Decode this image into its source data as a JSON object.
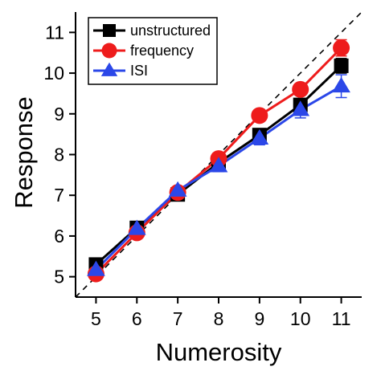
{
  "chart_data": {
    "type": "line",
    "xlabel": "Numerosity",
    "ylabel": "Response",
    "xlim": [
      4.5,
      11.5
    ],
    "ylim": [
      4.5,
      11.5
    ],
    "x_ticks": [
      5,
      6,
      7,
      8,
      9,
      10,
      11
    ],
    "y_ticks": [
      5,
      6,
      7,
      8,
      9,
      10,
      11
    ],
    "x_tick_labels": [
      "5",
      "6",
      "7",
      "8",
      "9",
      "10",
      "11"
    ],
    "y_tick_labels": [
      "5",
      "6",
      "7",
      "8",
      "9",
      "10",
      "11"
    ],
    "x": [
      5,
      6,
      7,
      8,
      9,
      10,
      11
    ],
    "reference_line": {
      "style": "dashed",
      "description_from": [
        4.5,
        4.5
      ],
      "description_to": [
        11.5,
        11.5
      ]
    },
    "legend_position": "top-left",
    "grid": false,
    "series": [
      {
        "name": "unstructured",
        "marker": "square",
        "color": "#000000",
        "values": [
          5.3,
          6.2,
          7.02,
          7.8,
          8.48,
          9.22,
          10.18
        ],
        "error": [
          0.04,
          0.04,
          0.04,
          0.08,
          0.1,
          0.14,
          0.18
        ]
      },
      {
        "name": "frequency",
        "marker": "circle",
        "color": "#ee1c1c",
        "values": [
          5.07,
          6.08,
          7.07,
          7.9,
          8.96,
          9.6,
          10.62
        ],
        "error": [
          0.04,
          0.04,
          0.04,
          0.08,
          0.08,
          0.1,
          0.2
        ]
      },
      {
        "name": "ISI",
        "marker": "triangle",
        "color": "#2b47e8",
        "values": [
          5.17,
          6.18,
          7.12,
          7.72,
          8.4,
          9.1,
          9.68
        ],
        "error": [
          0.04,
          0.04,
          0.04,
          0.14,
          0.16,
          0.2,
          0.28
        ]
      }
    ]
  }
}
